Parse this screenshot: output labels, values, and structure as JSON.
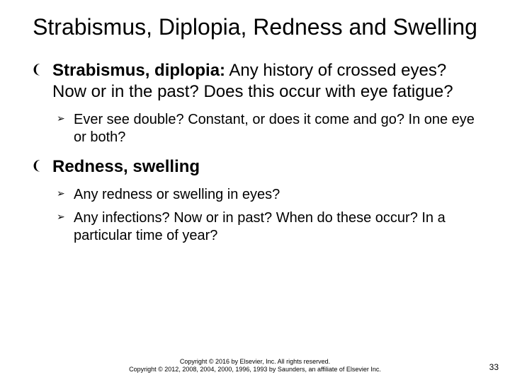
{
  "slide": {
    "background_color": "#ffffff",
    "text_color": "#000000",
    "title": "Strabismus, Diplopia, Redness and Swelling",
    "title_fontsize": 32,
    "body_fontsize": 24,
    "sub_fontsize": 20,
    "bullets": [
      {
        "marker": "❨",
        "bold": "Strabismus, diplopia:",
        "text": " Any history of crossed eyes? Now or in the past? Does this occur with eye fatigue?",
        "sub": [
          {
            "marker": "➢",
            "text": "Ever see double? Constant, or does it come and go? In one eye or both?"
          }
        ]
      },
      {
        "marker": "❨",
        "bold": "Redness, swelling",
        "text": "",
        "sub": [
          {
            "marker": "➢",
            "text": "Any redness or swelling in eyes?"
          },
          {
            "marker": "➢",
            "text": "Any infections? Now or in past? When do these occur? In a particular time of year?"
          }
        ]
      }
    ],
    "footer_line1": "Copyright © 2016 by Elsevier, Inc. All rights reserved.",
    "footer_line2": "Copyright © 2012, 2008, 2004, 2000, 1996, 1993 by Saunders, an affiliate of Elsevier Inc.",
    "page_number": "33"
  }
}
